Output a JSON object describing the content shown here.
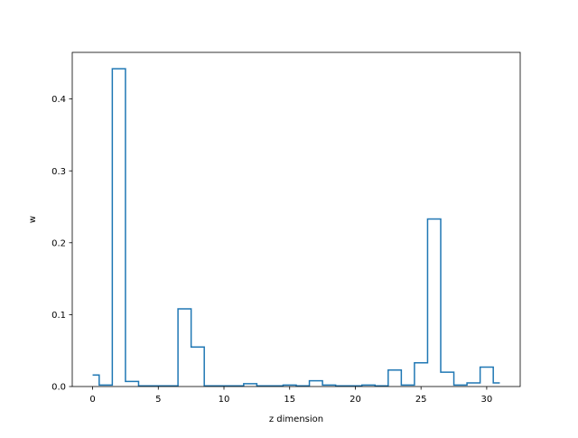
{
  "chart_data": {
    "type": "step",
    "xlabel": "z dimension",
    "ylabel": "w",
    "xlim": [
      -1.55,
      32.55
    ],
    "ylim": [
      0,
      0.4648
    ],
    "xticks": [
      0,
      5,
      10,
      15,
      20,
      25,
      30
    ],
    "yticks": [
      0.0,
      0.1,
      0.2,
      0.3,
      0.4
    ],
    "xtick_labels": [
      "0",
      "5",
      "10",
      "15",
      "20",
      "25",
      "30"
    ],
    "ytick_labels": [
      "0.0",
      "0.1",
      "0.2",
      "0.3",
      "0.4"
    ],
    "grid": false,
    "legend": "none",
    "step_where": "mid",
    "line_color": "#1f77b4",
    "x": [
      0,
      1,
      2,
      3,
      4,
      5,
      6,
      7,
      8,
      9,
      10,
      11,
      12,
      13,
      14,
      15,
      16,
      17,
      18,
      19,
      20,
      21,
      22,
      23,
      24,
      25,
      26,
      27,
      28,
      29,
      30,
      31
    ],
    "y": [
      0.016,
      0.002,
      0.442,
      0.007,
      0.001,
      0.001,
      0.001,
      0.108,
      0.055,
      0.001,
      0.001,
      0.001,
      0.004,
      0.001,
      0.001,
      0.002,
      0.001,
      0.008,
      0.002,
      0.001,
      0.001,
      0.002,
      0.001,
      0.023,
      0.002,
      0.033,
      0.233,
      0.02,
      0.002,
      0.005,
      0.027,
      0.005
    ]
  }
}
